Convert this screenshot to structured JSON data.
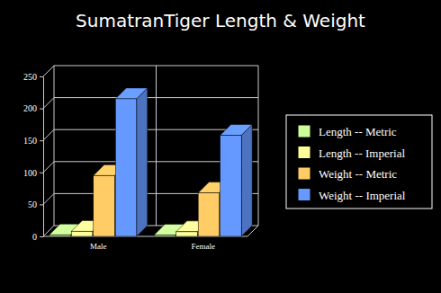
{
  "chart_data": {
    "type": "bar",
    "title": "SumatranTiger Length & Weight",
    "categories": [
      "Male",
      "Female"
    ],
    "series": [
      {
        "name": "Length -- Metric",
        "color": "#ccff99",
        "values": [
          2.4,
          2.2
        ]
      },
      {
        "name": "Length -- Imperial",
        "color": "#ffff99",
        "values": [
          7.9,
          7.2
        ]
      },
      {
        "name": "Weight -- Metric",
        "color": "#ffcc66",
        "values": [
          95,
          68
        ]
      },
      {
        "name": "Weight -- Imperial",
        "color": "#6699ff",
        "values": [
          215,
          158
        ]
      }
    ],
    "ylim": [
      0,
      250
    ],
    "yticks": [
      0,
      50,
      100,
      150,
      200,
      250
    ],
    "grid": true,
    "legend": "right"
  }
}
